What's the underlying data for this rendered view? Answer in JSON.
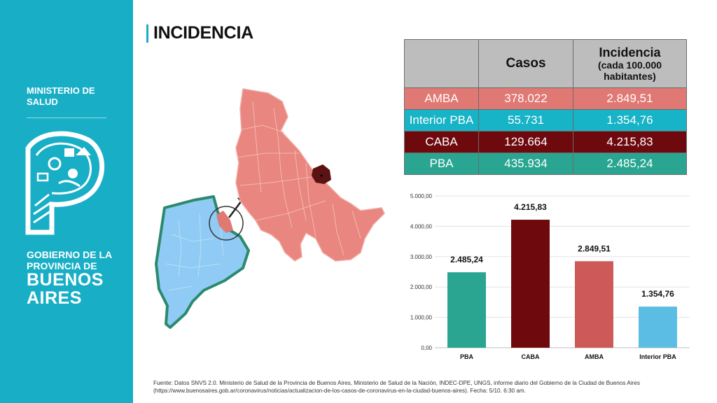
{
  "sidebar": {
    "ministry": "MINISTERIO DE SALUD",
    "gov_line": "GOBIERNO DE LA PROVINCIA DE",
    "province": "BUENOS AIRES",
    "color": "#18aec6"
  },
  "title": "INCIDENCIA",
  "table": {
    "headers": {
      "casos": "Casos",
      "incidencia": "Incidencia",
      "incidencia_sub": "(cada 100.000 habitantes)"
    },
    "rows": [
      {
        "region": "AMBA",
        "casos": "378.022",
        "incidencia": "2.849,51",
        "color": "#e07874"
      },
      {
        "region": "Interior PBA",
        "casos": "55.731",
        "incidencia": "1.354,76",
        "color": "#17b3c6"
      },
      {
        "region": "CABA",
        "casos": "129.664",
        "incidencia": "4.215,83",
        "color": "#6e0a0e"
      },
      {
        "region": "PBA",
        "casos": "435.934",
        "incidencia": "2.485,24",
        "color": "#29a591"
      }
    ]
  },
  "chart_data": {
    "type": "bar",
    "categories": [
      "PBA",
      "CABA",
      "AMBA",
      "Interior PBA"
    ],
    "values": [
      2485.24,
      4215.83,
      2849.51,
      1354.76
    ],
    "value_labels": [
      "2.485,24",
      "4.215,83",
      "2.849,51",
      "1.354,76"
    ],
    "colors": [
      "#29a591",
      "#6e0a0e",
      "#cd5a58",
      "#5bbde3"
    ],
    "ylim": [
      0,
      5000
    ],
    "yticks": [
      "0,00",
      "1.000,00",
      "2.000,00",
      "3.000,00",
      "4.000,00",
      "5.000,00"
    ],
    "grid": true,
    "title": "",
    "xlabel": "",
    "ylabel": ""
  },
  "footer": "Fuente: Datos SNVS 2.0. Ministerio de Salud de la Provincia de Buenos Aires, Ministerio de Salud de la Nación, INDEC-DPE,  UNGS, informe diario del Gobierno de la Ciudad de Buenos Aires (https://www.buenosaires.gob.ar/coronavirus/noticias/actualizacion-de-los-casos-de-coronavirus-en-la-ciudad-buenos-aires).  Fecha: 5/10. 6:30 am."
}
